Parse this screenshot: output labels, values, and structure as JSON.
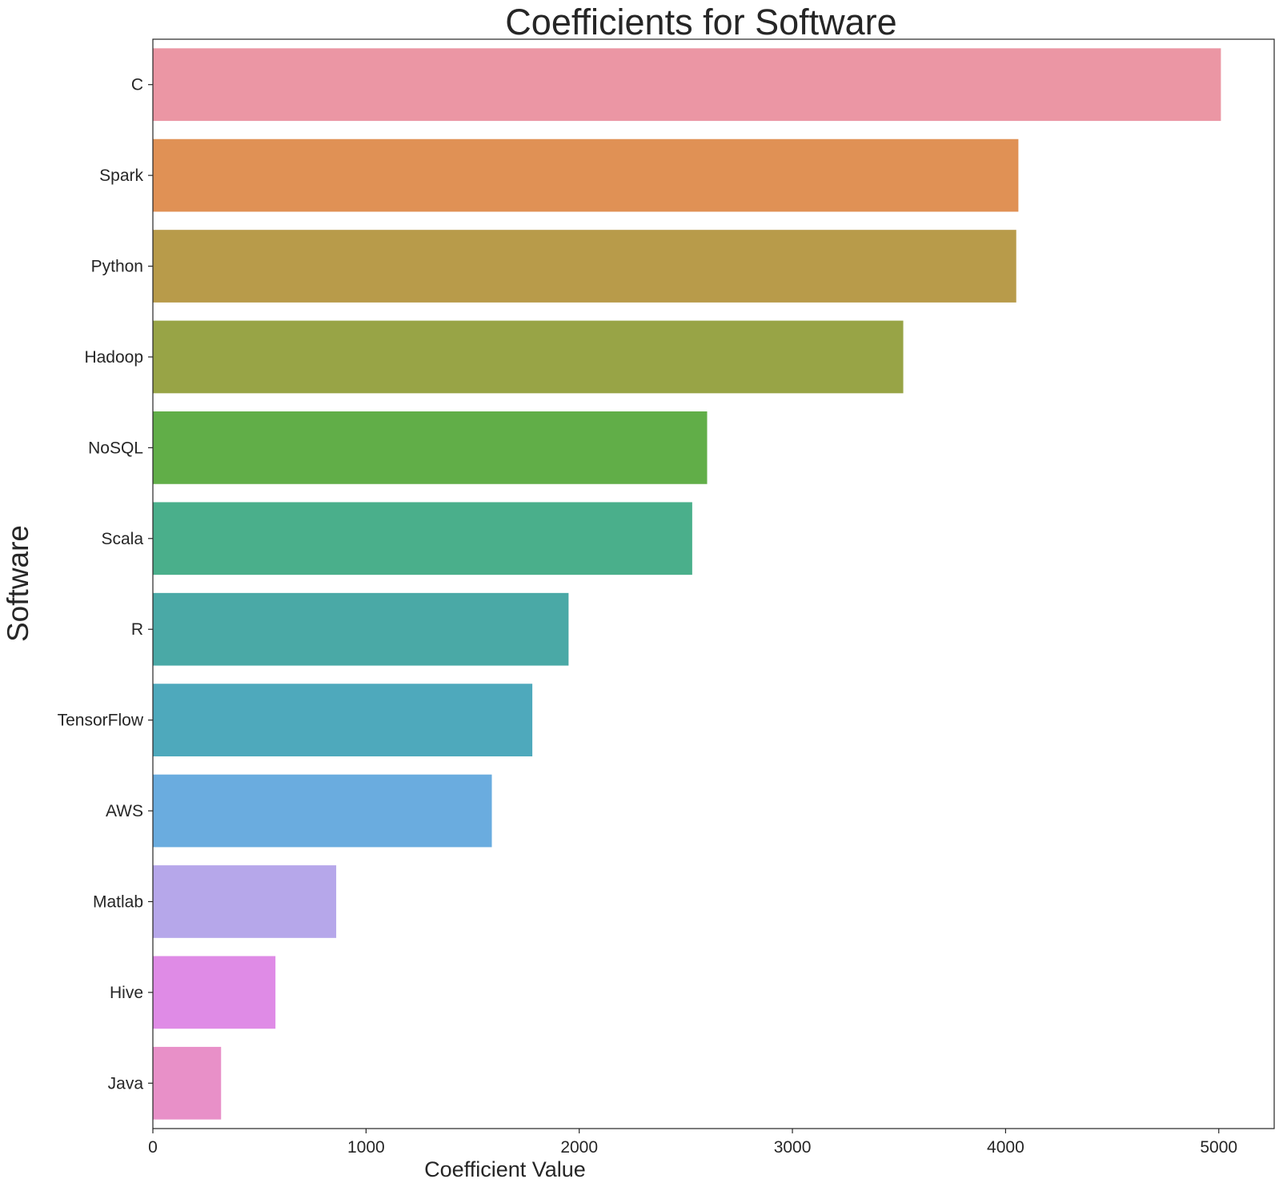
{
  "chart_data": {
    "type": "bar",
    "orientation": "horizontal",
    "title": "Coefficients for Software",
    "xlabel": "Coefficient Value",
    "ylabel": "Software",
    "categories": [
      "C",
      "Spark",
      "Python",
      "Hadoop",
      "NoSQL",
      "Scala",
      "R",
      "TensorFlow",
      "AWS",
      "Matlab",
      "Hive",
      "Java"
    ],
    "values": [
      5010,
      4060,
      4050,
      3520,
      2600,
      2530,
      1950,
      1780,
      1590,
      860,
      575,
      320
    ],
    "colors": [
      "#eb96a4",
      "#e09155",
      "#b89b4a",
      "#98a446",
      "#61ae48",
      "#4aaf8b",
      "#4aa9a6",
      "#4ea9bc",
      "#6aacdf",
      "#b6a7ea",
      "#df8be6",
      "#e890c8"
    ],
    "xlim": [
      0,
      5260
    ],
    "xticks": [
      0,
      1000,
      2000,
      3000,
      4000,
      5000
    ],
    "grid": false,
    "legend": "none"
  }
}
